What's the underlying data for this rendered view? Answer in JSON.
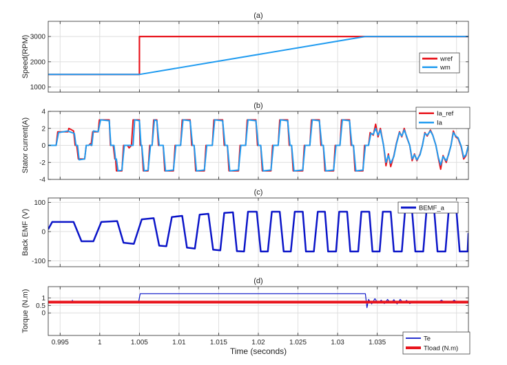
{
  "chart_data": [
    {
      "type": "line",
      "title": "(a)",
      "ylabel": "Speed(RPM)",
      "xlabel": "",
      "xlim": [
        0.9935,
        1.0465
      ],
      "ylim": [
        800,
        3600
      ],
      "yticks": [
        1000,
        2000,
        3000
      ],
      "grid": true,
      "legend_position": "right",
      "series": [
        {
          "name": "wref",
          "color": "#e8141c",
          "width": 2.2,
          "x": [
            0.9935,
            1.005,
            1.005,
            1.0465
          ],
          "y": [
            1500,
            1500,
            3000,
            3000
          ]
        },
        {
          "name": "wm",
          "color": "#1f9bf0",
          "width": 2,
          "x": [
            0.9935,
            1.005,
            1.0335,
            1.0465
          ],
          "y": [
            1500,
            1500,
            3000,
            3000
          ]
        }
      ]
    },
    {
      "type": "line",
      "title": "(b)",
      "ylabel": "Stator current(A)",
      "xlabel": "",
      "xlim": [
        0.9935,
        1.0465
      ],
      "ylim": [
        -4,
        4
      ],
      "yticks": [
        -4,
        -2,
        0,
        2,
        4
      ],
      "grid": true,
      "legend_position": "top-right",
      "series": [
        {
          "name": "Ia_ref",
          "color": "#e8141c",
          "width": 2,
          "x": [
            0.9935,
            0.9945,
            0.9947,
            0.996,
            0.9961,
            0.9967,
            0.9969,
            0.9971,
            0.9973,
            0.9981,
            0.9983,
            0.9986,
            0.9988,
            0.9989,
            0.9991,
            0.9998,
            0.99995,
            1.0012,
            1.00135,
            1.0017,
            1.0019,
            1.002,
            1.0021,
            1.0028,
            1.003,
            1.0035,
            1.0037,
            1.004,
            1.0042,
            1.005,
            1.0051,
            1.0053,
            1.0055,
            1.0061,
            1.0063,
            1.0066,
            1.0068,
            1.0072,
            1.0074,
            1.008,
            1.0082,
            1.0093,
            1.0095,
            1.0102,
            1.0104,
            1.0114,
            1.0116,
            1.0119,
            1.0121,
            1.0132,
            1.0134,
            1.0142,
            1.0144,
            1.0155,
            1.0157,
            1.0161,
            1.0163,
            1.0175,
            1.0177,
            1.0184,
            1.0186,
            1.0197,
            1.0199,
            1.0203,
            1.0205,
            1.0216,
            1.0218,
            1.0225,
            1.0227,
            1.0237,
            1.0239,
            1.0242,
            1.0244,
            1.0256,
            1.0258,
            1.0265,
            1.0267,
            1.0277,
            1.0279,
            1.0282,
            1.0284,
            1.0295,
            1.0297,
            1.0303,
            1.0305,
            1.0315,
            1.0317,
            1.032,
            1.0322,
            1.0332,
            1.0334,
            1.0339,
            1.0341,
            1.0345,
            1.0348,
            1.0351,
            1.0354,
            1.0358,
            1.0361,
            1.0364,
            1.0367,
            1.0371,
            1.0374,
            1.0378,
            1.0381,
            1.0384,
            1.0387,
            1.0391,
            1.0394,
            1.0397,
            1.04,
            1.0404,
            1.0407,
            1.041,
            1.0413,
            1.0417,
            1.042,
            1.0424,
            1.0427,
            1.043,
            1.0433,
            1.0437,
            1.044,
            1.0443,
            1.0446,
            1.0449,
            1.0452,
            1.0456,
            1.0459,
            1.0462,
            1.0465
          ],
          "y": [
            0,
            0,
            1.6,
            1.6,
            2.0,
            1.7,
            0,
            0,
            -1.6,
            -1.6,
            0,
            0,
            0.2,
            0,
            1.6,
            1.6,
            3.0,
            3.0,
            0,
            0,
            -1.6,
            -1.6,
            -3.0,
            -3.0,
            0,
            0,
            -0.3,
            0,
            3.0,
            3.0,
            0,
            0,
            -3.0,
            -3.0,
            0,
            0,
            3.0,
            3.0,
            0,
            0,
            -3.0,
            -3.0,
            0,
            0,
            3.0,
            3.0,
            0,
            0,
            -3.0,
            -3.0,
            0,
            0,
            3.0,
            3.0,
            0,
            0,
            -3.0,
            -3.0,
            0,
            0,
            3.0,
            3.0,
            0,
            0,
            -3.0,
            -3.0,
            0,
            0,
            3.0,
            3.0,
            0,
            0,
            -3.0,
            -3.0,
            0,
            0,
            3.0,
            3.0,
            0,
            0,
            -3.0,
            -3.0,
            0,
            0,
            3.0,
            3.0,
            0,
            0,
            -3.0,
            -3.0,
            0,
            0,
            1.5,
            1.2,
            2.5,
            1.0,
            2.0,
            0,
            -2.4,
            -1.0,
            -2.5,
            -1.2,
            0.2,
            1.6,
            1.0,
            2.0,
            1.0,
            0,
            -1.8,
            -1.0,
            -1.8,
            -1.0,
            0,
            1.5,
            1.1,
            1.8,
            1.2,
            0,
            -1.5,
            -2.8,
            -1.2,
            -2.0,
            -1.0,
            0,
            1.7,
            1.0,
            0.8,
            -0.2,
            -1.6,
            -1.2,
            0
          ]
        },
        {
          "name": "Ia",
          "color": "#1f9bf0",
          "width": 2,
          "x": [
            0.9935,
            0.9945,
            0.9948,
            0.996,
            0.9962,
            0.9968,
            0.997,
            0.9972,
            0.9974,
            0.9981,
            0.9983,
            0.9986,
            0.9988,
            0.999,
            0.9992,
            0.9998,
            1.0001,
            1.0012,
            1.0014,
            1.0018,
            1.002,
            1.0021,
            1.0023,
            1.0028,
            1.0031,
            1.0035,
            1.0037,
            1.0042,
            1.0044,
            1.005,
            1.0052,
            1.0053,
            1.0056,
            1.0061,
            1.0064,
            1.0066,
            1.0069,
            1.0072,
            1.0075,
            1.008,
            1.0083,
            1.0093,
            1.0096,
            1.0102,
            1.0105,
            1.0114,
            1.0117,
            1.0119,
            1.0122,
            1.0132,
            1.0135,
            1.0142,
            1.0145,
            1.0155,
            1.0158,
            1.0161,
            1.0164,
            1.0175,
            1.0178,
            1.0184,
            1.0187,
            1.0197,
            1.02,
            1.0203,
            1.0206,
            1.0216,
            1.0219,
            1.0225,
            1.0228,
            1.0237,
            1.024,
            1.0242,
            1.0245,
            1.0256,
            1.0259,
            1.0265,
            1.0268,
            1.0277,
            1.028,
            1.0282,
            1.0285,
            1.0295,
            1.0298,
            1.0303,
            1.0306,
            1.0315,
            1.0318,
            1.032,
            1.0323,
            1.0332,
            1.0335,
            1.0339,
            1.0342,
            1.0345,
            1.0348,
            1.0351,
            1.0354,
            1.0358,
            1.0361,
            1.0364,
            1.0367,
            1.0371,
            1.0374,
            1.0378,
            1.0381,
            1.0384,
            1.0387,
            1.0391,
            1.0394,
            1.0397,
            1.04,
            1.0404,
            1.0407,
            1.041,
            1.0413,
            1.0417,
            1.042,
            1.0424,
            1.0427,
            1.043,
            1.0433,
            1.0437,
            1.044,
            1.0443,
            1.0446,
            1.0449,
            1.0452,
            1.0456,
            1.0459,
            1.0462,
            1.0465
          ],
          "y": [
            0,
            0,
            1.5,
            1.7,
            1.6,
            1.4,
            0,
            0,
            -1.7,
            -1.6,
            0,
            0,
            0.1,
            0,
            1.7,
            1.6,
            3.0,
            2.9,
            0,
            0,
            -1.7,
            -1.6,
            -3.0,
            -2.9,
            0,
            0,
            0,
            0,
            3.0,
            2.9,
            0,
            0,
            -3.0,
            -2.9,
            0,
            0,
            3.0,
            2.9,
            0,
            0,
            -3.0,
            -2.9,
            0,
            0,
            3.0,
            2.9,
            0,
            0,
            -3.0,
            -2.9,
            0,
            0,
            3.0,
            2.9,
            0,
            0,
            -3.0,
            -2.9,
            0,
            0,
            3.0,
            2.9,
            0,
            0,
            -3.0,
            -2.9,
            0,
            0,
            3.0,
            2.9,
            0,
            0,
            -3.0,
            -2.9,
            0,
            0,
            3.0,
            2.9,
            0,
            0,
            -3.0,
            -2.9,
            0,
            0,
            3.0,
            2.9,
            0,
            0,
            -3.0,
            -2.9,
            0,
            0,
            1.4,
            1.3,
            2.0,
            1.2,
            1.8,
            0,
            -2.0,
            -1.2,
            -2.1,
            -1.3,
            0.1,
            1.5,
            1.1,
            1.8,
            1.1,
            0,
            -1.6,
            -1.1,
            -1.7,
            -1.1,
            0,
            1.4,
            1.2,
            1.7,
            1.2,
            0,
            -1.4,
            -2.3,
            -1.3,
            -1.8,
            -1.1,
            0,
            1.5,
            1.1,
            0.9,
            -0.1,
            -1.4,
            -1.1,
            0
          ]
        }
      ]
    },
    {
      "type": "line",
      "title": "(c)",
      "ylabel": "Back EMF (V)",
      "xlabel": "",
      "xlim": [
        0.9935,
        1.0465
      ],
      "ylim": [
        -120,
        115
      ],
      "yticks": [
        -100,
        0,
        100
      ],
      "grid": true,
      "legend_position": "top-right",
      "series": [
        {
          "name": "BEMF_a",
          "color": "#0a14c8",
          "width": 2.5,
          "x": [
            0.9935,
            0.994,
            0.9967,
            0.9977,
            0.9992,
            1.0002,
            1.0022,
            1.003,
            1.0043,
            1.0053,
            1.0068,
            1.0075,
            1.0084,
            1.0091,
            1.0104,
            1.011,
            1.012,
            1.0126,
            1.0137,
            1.0143,
            1.0152,
            1.0157,
            1.0168,
            1.0173,
            1.0182,
            1.0187,
            1.0198,
            1.0203,
            1.0212,
            1.0217,
            1.0227,
            1.0232,
            1.0241,
            1.0246,
            1.0256,
            1.026,
            1.027,
            1.0275,
            1.0284,
            1.0288,
            1.0298,
            1.0302,
            1.0312,
            1.0316,
            1.0326,
            1.033,
            1.034,
            1.0344,
            1.0353,
            1.0357,
            1.0367,
            1.0371,
            1.0381,
            1.0385,
            1.0394,
            1.0398,
            1.0408,
            1.0412,
            1.0422,
            1.0426,
            1.0436,
            1.044,
            1.045,
            1.0454,
            1.0464,
            1.0465
          ],
          "y": [
            8,
            33,
            33,
            -33,
            -33,
            33,
            36,
            -38,
            -42,
            42,
            46,
            -48,
            -50,
            50,
            54,
            -55,
            -58,
            58,
            61,
            -62,
            -64,
            64,
            66,
            -67,
            -68,
            68,
            68,
            -68,
            -68,
            68,
            68,
            -68,
            -68,
            68,
            68,
            -68,
            -68,
            68,
            68,
            -68,
            -68,
            68,
            68,
            -68,
            -68,
            68,
            68,
            -68,
            -68,
            68,
            68,
            -68,
            -68,
            68,
            68,
            -68,
            -68,
            68,
            68,
            -68,
            -68,
            68,
            68,
            -68,
            -68,
            -5
          ]
        }
      ]
    },
    {
      "type": "line",
      "title": "(d)",
      "ylabel": "Torque (N.m)",
      "xlabel": "Time (seconds)",
      "xlim": [
        0.9935,
        1.0465
      ],
      "ylim": [
        -1.5,
        1.75
      ],
      "yticks": [
        0,
        0.5,
        1
      ],
      "xticks": [
        0.995,
        1,
        1.005,
        1.01,
        1.015,
        1.02,
        1.025,
        1.03,
        1.035,
        1.04,
        1.045
      ],
      "xticklabels": [
        "0.995",
        "1",
        "1.005",
        "1.01",
        "1.015",
        "1.02",
        "1.025",
        "1.03",
        "1.035",
        "1.04",
        "1.045"
      ],
      "grid": true,
      "legend_position": "bottom-right",
      "series": [
        {
          "name": "Te",
          "color": "#0a14c8",
          "width": 1.2,
          "x": [
            0.9935,
            0.9965,
            0.99655,
            0.9966,
            1.0049,
            1.0051,
            1.0335,
            1.0337,
            1.0339,
            1.0343,
            1.0347,
            1.0351,
            1.0355,
            1.0359,
            1.0363,
            1.0367,
            1.0371,
            1.0375,
            1.0379,
            1.0383,
            1.0387,
            1.0391,
            1.0395,
            1.0399,
            1.0403,
            1.0407,
            1.0411,
            1.0415,
            1.0419,
            1.0423,
            1.0427,
            1.0431,
            1.0435,
            1.0439,
            1.0443,
            1.0447,
            1.0451,
            1.0455,
            1.0459,
            1.0465
          ],
          "y": [
            0.72,
            0.72,
            0.85,
            0.72,
            0.72,
            1.28,
            1.28,
            0.35,
            0.9,
            0.6,
            0.95,
            0.65,
            0.85,
            0.62,
            0.9,
            0.65,
            0.88,
            0.6,
            0.9,
            0.66,
            0.84,
            0.62,
            0.72,
            0.72,
            0.72,
            0.72,
            0.72,
            0.72,
            0.72,
            0.72,
            0.72,
            0.85,
            0.72,
            0.72,
            0.72,
            0.85,
            0.72,
            0.72,
            0.72,
            0.72
          ]
        },
        {
          "name": "Tload (N.m)",
          "color": "#e8141c",
          "width": 4,
          "x": [
            0.9935,
            1.0465
          ],
          "y": [
            0.72,
            0.72
          ]
        }
      ]
    }
  ]
}
